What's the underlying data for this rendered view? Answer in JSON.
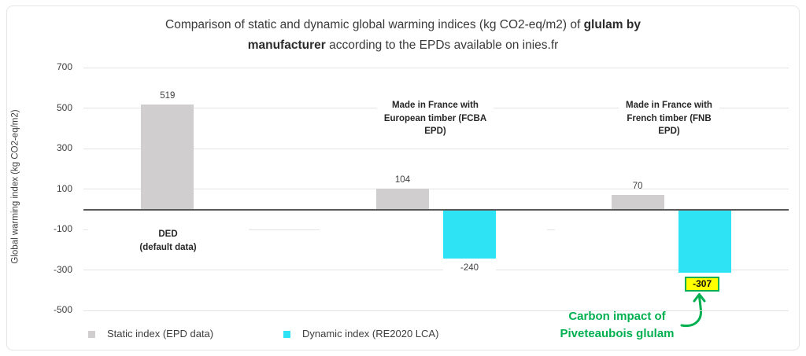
{
  "title": {
    "line1_regular": "Comparison of static and dynamic global warming indices (kg CO2-eq/m2) of ",
    "line1_bold": "glulam by",
    "line2_bold": "manufacturer",
    "line2_regular": " according to the EPDs available on inies.fr"
  },
  "chart_data": {
    "type": "bar",
    "ylabel": "Global warming index (kg CO2-eq/m2)",
    "yticks": [
      700,
      500,
      300,
      100,
      -100,
      -300,
      -500
    ],
    "ylim": [
      -600,
      780
    ],
    "grid": true,
    "legend_position": "bottom",
    "categories": [
      "DED (default data)",
      "Made in France with European timber (FCBA EPD)",
      "Made in France with French timber (FNB EPD)"
    ],
    "category_label_lines": [
      [
        "DED",
        "(default data)"
      ],
      [
        "Made in France with",
        "European timber (FCBA",
        "EPD)"
      ],
      [
        "Made in France with",
        "French timber (FNB",
        "EPD)"
      ]
    ],
    "series": [
      {
        "name": "Static index (EPD data)",
        "color": "#d0cece",
        "values": [
          519,
          104,
          70
        ]
      },
      {
        "name": "Dynamic index (RE2020 LCA)",
        "color": "#2ee3f4",
        "values": [
          null,
          -240,
          -307
        ]
      }
    ],
    "highlight": {
      "category_index": 2,
      "series_index": 1,
      "label": "-307",
      "fill": "#ffff00",
      "border": "#00b050"
    }
  },
  "annotation": {
    "line1": "Carbon impact of",
    "line2": "Piveteaubois glulam",
    "color": "#00b050"
  }
}
